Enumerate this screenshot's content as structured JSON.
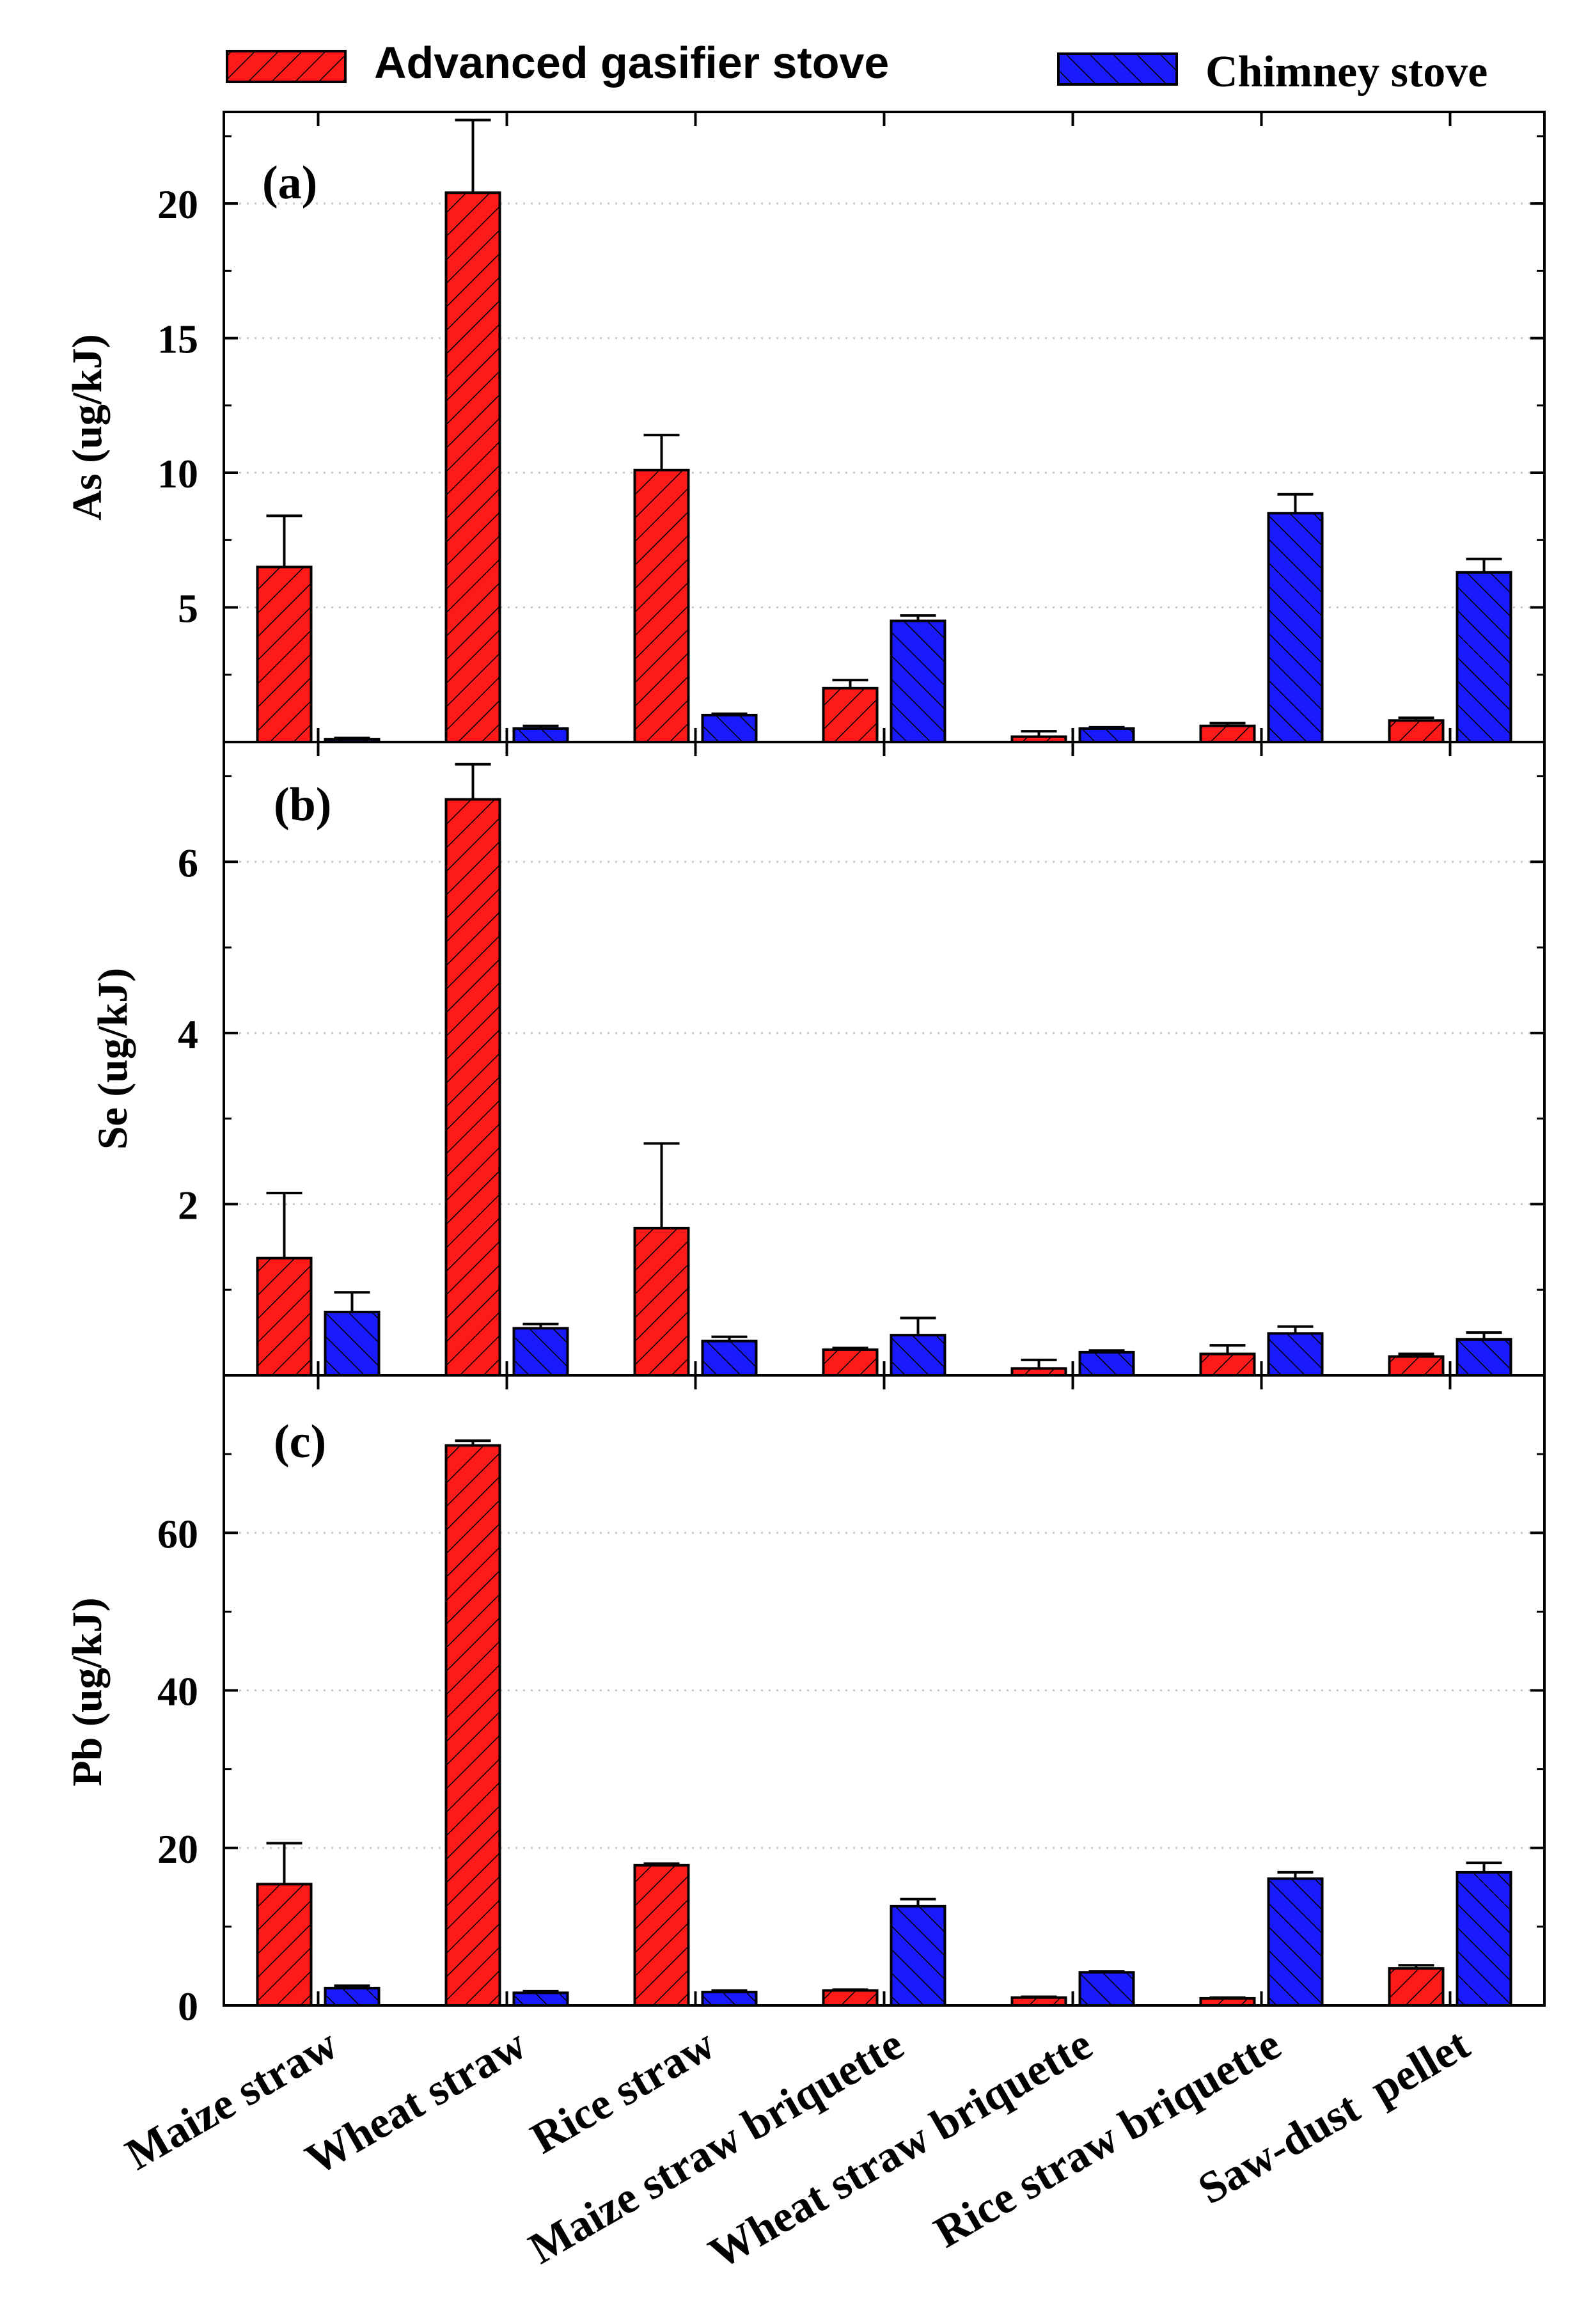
{
  "colors": {
    "advanced": "#ff1a1a",
    "chimney": "#1a1aff",
    "axis": "#000000",
    "grid": "#c8c8c8"
  },
  "legend": {
    "placement": "top",
    "items": [
      {
        "label": "Advanced gasifier stove",
        "color": "#ff1a1a",
        "hatch": "forward"
      },
      {
        "label": "Chimney stove",
        "color": "#1a1aff",
        "hatch": "back"
      }
    ]
  },
  "categories": [
    "Maize straw",
    "Wheat straw",
    "Rice straw",
    "Maize straw briquette",
    "Wheat straw briquette",
    "Rice straw briquette",
    "Saw-dust  pellet"
  ],
  "chart_data": [
    {
      "type": "bar",
      "panel_label": "(a)",
      "ylabel": "As (ug/kJ)",
      "ylim": [
        0,
        23.4
      ],
      "yticks": [
        5,
        10,
        15,
        20
      ],
      "grid": "horizontal dotted",
      "categories": [
        "Maize straw",
        "Wheat straw",
        "Rice straw",
        "Maize straw briquette",
        "Wheat straw briquette",
        "Rice straw briquette",
        "Saw-dust  pellet"
      ],
      "series": [
        {
          "name": "Advanced gasifier stove",
          "values": [
            6.5,
            20.4,
            10.1,
            2.0,
            0.2,
            0.6,
            0.8
          ],
          "errors": [
            1.9,
            2.7,
            1.3,
            0.3,
            0.2,
            0.1,
            0.1
          ]
        },
        {
          "name": "Chimney stove",
          "values": [
            0.1,
            0.5,
            1.0,
            4.5,
            0.5,
            8.5,
            6.3
          ],
          "errors": [
            0.05,
            0.1,
            0.05,
            0.2,
            0.05,
            0.7,
            0.5
          ]
        }
      ]
    },
    {
      "type": "bar",
      "panel_label": "(b)",
      "ylabel": "Se (ug/kJ)",
      "ylim": [
        0,
        7.4
      ],
      "yticks": [
        2,
        4,
        6
      ],
      "grid": "horizontal dotted",
      "categories": [
        "Maize straw",
        "Wheat straw",
        "Rice straw",
        "Maize straw briquette",
        "Wheat straw briquette",
        "Rice straw briquette",
        "Saw-dust  pellet"
      ],
      "series": [
        {
          "name": "Advanced gasifier stove",
          "values": [
            1.37,
            6.73,
            1.72,
            0.3,
            0.08,
            0.25,
            0.22
          ],
          "errors": [
            0.76,
            0.41,
            0.99,
            0.02,
            0.1,
            0.1,
            0.03
          ]
        },
        {
          "name": "Chimney stove",
          "values": [
            0.74,
            0.55,
            0.4,
            0.47,
            0.27,
            0.49,
            0.42
          ],
          "errors": [
            0.23,
            0.05,
            0.05,
            0.2,
            0.02,
            0.08,
            0.08
          ]
        }
      ]
    },
    {
      "type": "bar",
      "panel_label": "(c)",
      "ylabel": "Pb (ug/kJ)",
      "ylim": [
        0,
        80
      ],
      "yticks": [
        0,
        20,
        40,
        60
      ],
      "grid": "horizontal dotted",
      "categories": [
        "Maize straw",
        "Wheat straw",
        "Rice straw",
        "Maize straw briquette",
        "Wheat straw briquette",
        "Rice straw briquette",
        "Saw-dust  pellet"
      ],
      "series": [
        {
          "name": "Advanced gasifier stove",
          "values": [
            15.4,
            71.1,
            17.8,
            1.9,
            1.0,
            0.9,
            4.7
          ],
          "errors": [
            5.2,
            0.6,
            0.2,
            0.1,
            0.1,
            0.1,
            0.4
          ]
        },
        {
          "name": "Chimney stove",
          "values": [
            2.2,
            1.6,
            1.7,
            12.6,
            4.2,
            16.1,
            16.9
          ],
          "errors": [
            0.3,
            0.2,
            0.2,
            0.9,
            0.1,
            0.8,
            1.2
          ]
        }
      ]
    }
  ]
}
